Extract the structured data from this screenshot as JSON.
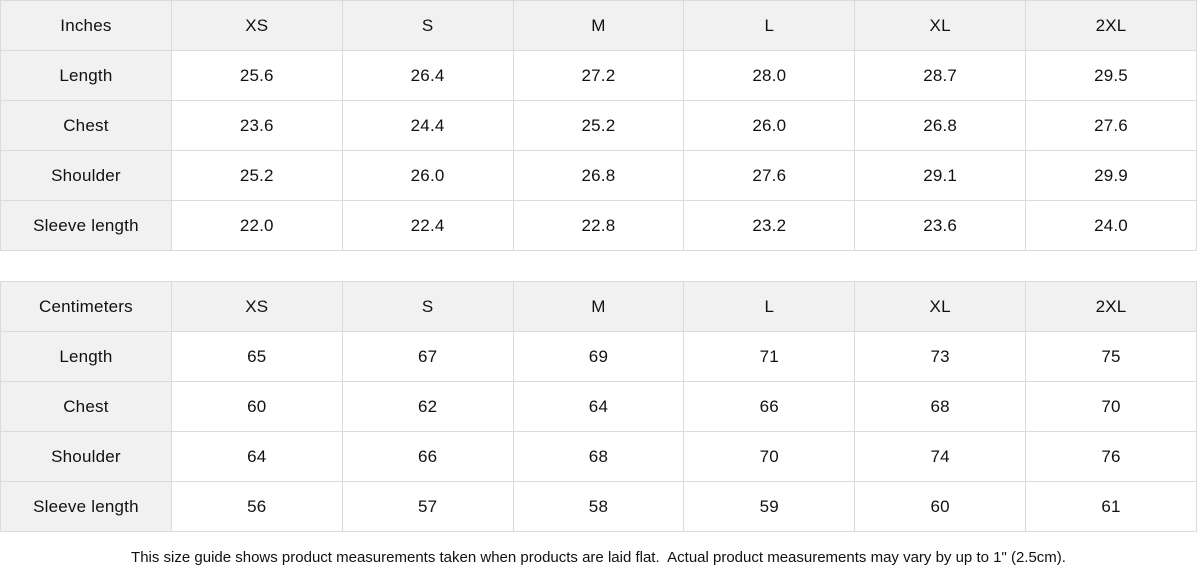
{
  "colors": {
    "header_bg": "#f1f1f1",
    "label_column_bg": "#f1f1f1",
    "cell_bg": "#ffffff",
    "border": "#dbdbdb",
    "text": "#111111"
  },
  "tables": [
    {
      "unit_label": "Inches",
      "sizes": [
        "XS",
        "S",
        "M",
        "L",
        "XL",
        "2XL"
      ],
      "rows": [
        {
          "label": "Length",
          "values": [
            "25.6",
            "26.4",
            "27.2",
            "28.0",
            "28.7",
            "29.5"
          ]
        },
        {
          "label": "Chest",
          "values": [
            "23.6",
            "24.4",
            "25.2",
            "26.0",
            "26.8",
            "27.6"
          ]
        },
        {
          "label": "Shoulder",
          "values": [
            "25.2",
            "26.0",
            "26.8",
            "27.6",
            "29.1",
            "29.9"
          ]
        },
        {
          "label": "Sleeve length",
          "values": [
            "22.0",
            "22.4",
            "22.8",
            "23.2",
            "23.6",
            "24.0"
          ]
        }
      ]
    },
    {
      "unit_label": "Centimeters",
      "sizes": [
        "XS",
        "S",
        "M",
        "L",
        "XL",
        "2XL"
      ],
      "rows": [
        {
          "label": "Length",
          "values": [
            "65",
            "67",
            "69",
            "71",
            "73",
            "75"
          ]
        },
        {
          "label": "Chest",
          "values": [
            "60",
            "62",
            "64",
            "66",
            "68",
            "70"
          ]
        },
        {
          "label": "Shoulder",
          "values": [
            "64",
            "66",
            "68",
            "70",
            "74",
            "76"
          ]
        },
        {
          "label": "Sleeve length",
          "values": [
            "56",
            "57",
            "58",
            "59",
            "60",
            "61"
          ]
        }
      ]
    }
  ],
  "footer": {
    "note": "This size guide shows product measurements taken when products are laid flat.  Actual product measurements may vary by up to 1\" (2.5cm)."
  }
}
